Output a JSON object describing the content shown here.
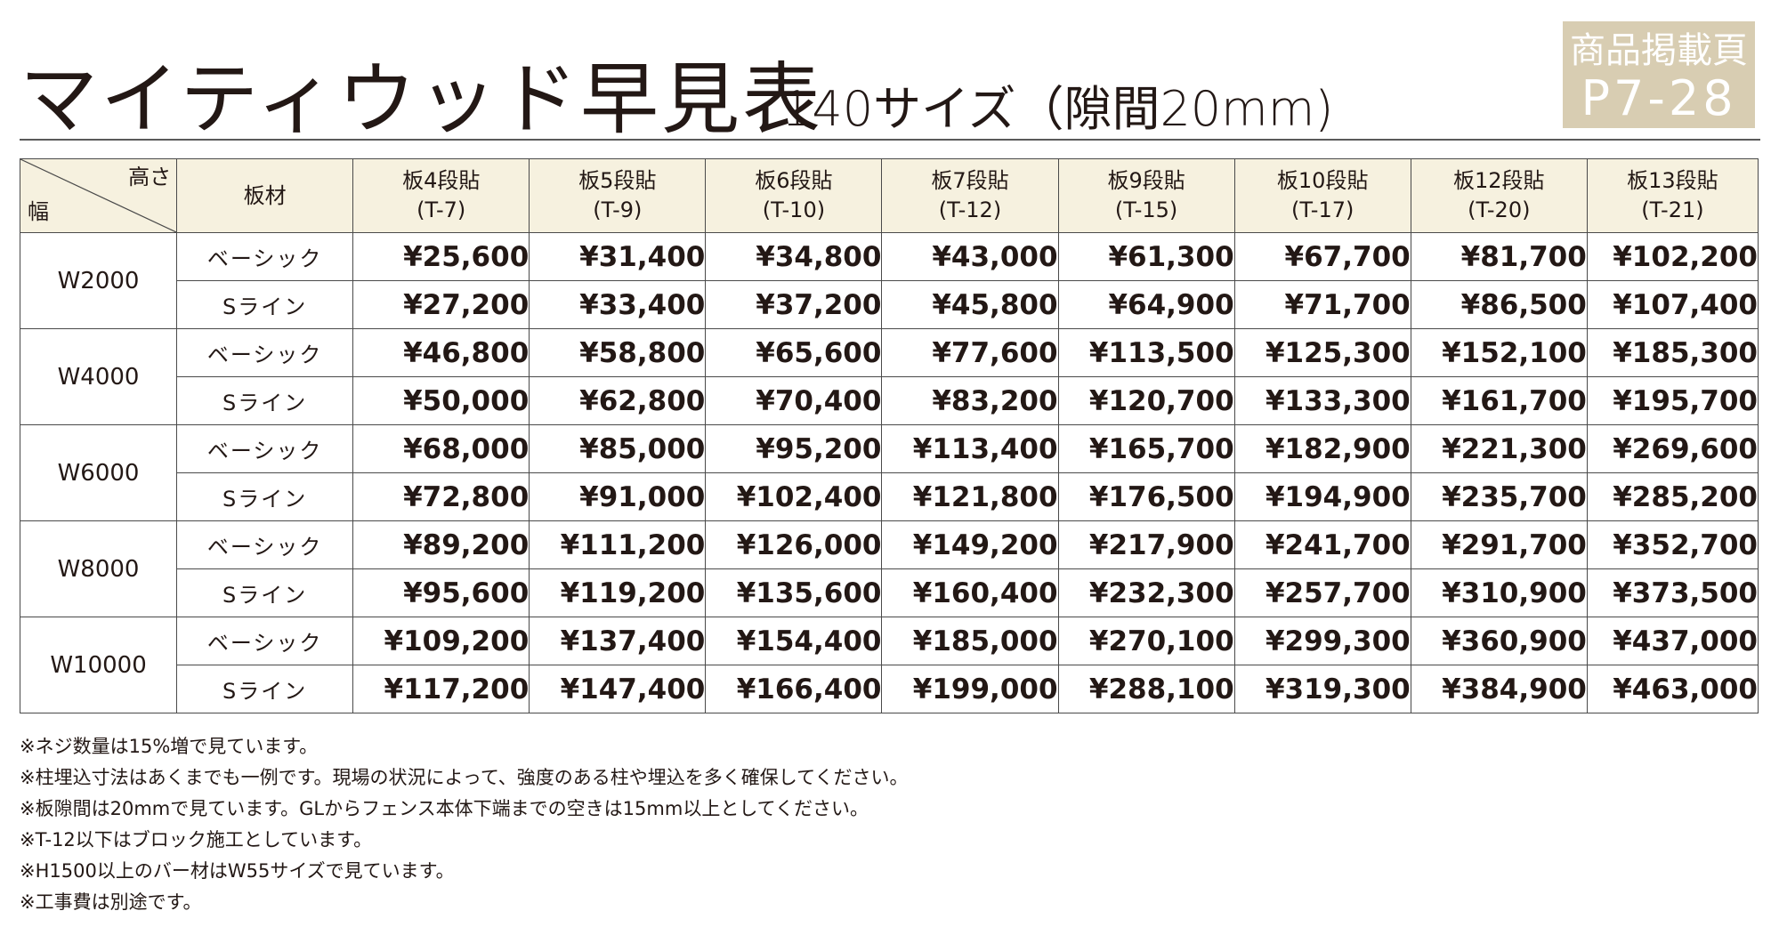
{
  "title": {
    "main": "マイティウッド早見表",
    "sub": "140サイズ（隙間20mm)"
  },
  "page_badge": {
    "line1": "商品掲載頁",
    "line2": "P7-28"
  },
  "table": {
    "corner_height": "高さ",
    "corner_width": "幅",
    "material_header": "板材",
    "columns": [
      {
        "name": "板4段貼",
        "code": "(T-7)"
      },
      {
        "name": "板5段貼",
        "code": "(T-9)"
      },
      {
        "name": "板6段貼",
        "code": "(T-10)"
      },
      {
        "name": "板7段貼",
        "code": "(T-12)"
      },
      {
        "name": "板9段貼",
        "code": "(T-15)"
      },
      {
        "name": "板10段貼",
        "code": "(T-17)"
      },
      {
        "name": "板12段貼",
        "code": "(T-20)"
      },
      {
        "name": "板13段貼",
        "code": "(T-21)"
      }
    ],
    "groups": [
      {
        "width": "W2000",
        "rows": [
          {
            "material": "ベーシック",
            "prices": [
              "¥25,600",
              "¥31,400",
              "¥34,800",
              "¥43,000",
              "¥61,300",
              "¥67,700",
              "¥81,700",
              "¥102,200"
            ]
          },
          {
            "material": "Sライン",
            "prices": [
              "¥27,200",
              "¥33,400",
              "¥37,200",
              "¥45,800",
              "¥64,900",
              "¥71,700",
              "¥86,500",
              "¥107,400"
            ]
          }
        ]
      },
      {
        "width": "W4000",
        "rows": [
          {
            "material": "ベーシック",
            "prices": [
              "¥46,800",
              "¥58,800",
              "¥65,600",
              "¥77,600",
              "¥113,500",
              "¥125,300",
              "¥152,100",
              "¥185,300"
            ]
          },
          {
            "material": "Sライン",
            "prices": [
              "¥50,000",
              "¥62,800",
              "¥70,400",
              "¥83,200",
              "¥120,700",
              "¥133,300",
              "¥161,700",
              "¥195,700"
            ]
          }
        ]
      },
      {
        "width": "W6000",
        "rows": [
          {
            "material": "ベーシック",
            "prices": [
              "¥68,000",
              "¥85,000",
              "¥95,200",
              "¥113,400",
              "¥165,700",
              "¥182,900",
              "¥221,300",
              "¥269,600"
            ]
          },
          {
            "material": "Sライン",
            "prices": [
              "¥72,800",
              "¥91,000",
              "¥102,400",
              "¥121,800",
              "¥176,500",
              "¥194,900",
              "¥235,700",
              "¥285,200"
            ]
          }
        ]
      },
      {
        "width": "W8000",
        "rows": [
          {
            "material": "ベーシック",
            "prices": [
              "¥89,200",
              "¥111,200",
              "¥126,000",
              "¥149,200",
              "¥217,900",
              "¥241,700",
              "¥291,700",
              "¥352,700"
            ]
          },
          {
            "material": "Sライン",
            "prices": [
              "¥95,600",
              "¥119,200",
              "¥135,600",
              "¥160,400",
              "¥232,300",
              "¥257,700",
              "¥310,900",
              "¥373,500"
            ]
          }
        ]
      },
      {
        "width": "W10000",
        "rows": [
          {
            "material": "ベーシック",
            "prices": [
              "¥109,200",
              "¥137,400",
              "¥154,400",
              "¥185,000",
              "¥270,100",
              "¥299,300",
              "¥360,900",
              "¥437,000"
            ]
          },
          {
            "material": "Sライン",
            "prices": [
              "¥117,200",
              "¥147,400",
              "¥166,400",
              "¥199,000",
              "¥288,100",
              "¥319,300",
              "¥384,900",
              "¥463,000"
            ]
          }
        ]
      }
    ]
  },
  "notes": [
    "※ネジ数量は15%増で見ています。",
    "※柱埋込寸法はあくまでも一例です。現場の状況によって、強度のある柱や埋込を多く確保してください。",
    "※板隙間は20mmで見ています。GLからフェンス本体下端までの空きは15mm以上としてください。",
    "※T-12以下はブロック施工としています。",
    "※H1500以上のバー材はW55サイズで見ています。",
    "※工事費は別途です。"
  ],
  "colors": {
    "header_bg": "#f6f1df",
    "badge_bg": "#d8cdb2",
    "text": "#231815"
  }
}
